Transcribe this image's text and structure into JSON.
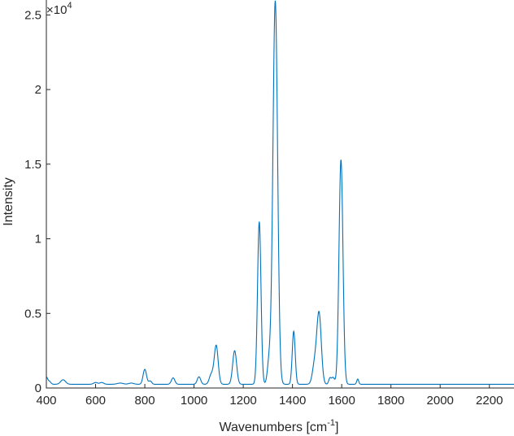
{
  "chart_data": {
    "type": "line",
    "title": "",
    "xlabel": "Wavenumbers [cm",
    "xlabel_sup": "-1",
    "xlabel_suffix": "]",
    "ylabel": "Intensity",
    "exponent_label": "×10",
    "exponent_power": "4",
    "xlim": [
      400,
      2300
    ],
    "ylim": [
      0,
      26000
    ],
    "xticks": [
      400,
      600,
      800,
      1000,
      1200,
      1400,
      1600,
      1800,
      2000,
      2200
    ],
    "xtick_labels": [
      "400",
      "600",
      "800",
      "1000",
      "1200",
      "1400",
      "1600",
      "1800",
      "2000",
      "2200"
    ],
    "yticks": [
      0,
      5000,
      10000,
      15000,
      20000,
      25000
    ],
    "ytick_labels": [
      "0",
      "0.5",
      "1",
      "1.5",
      "2",
      "2.5"
    ],
    "grid": false,
    "line_color": "#0072BD",
    "baseline": 250,
    "peaks": [
      {
        "x": 400,
        "height": 450,
        "width": 5
      },
      {
        "x": 412,
        "height": 200,
        "width": 6
      },
      {
        "x": 468,
        "height": 300,
        "width": 10
      },
      {
        "x": 600,
        "height": 120,
        "width": 8
      },
      {
        "x": 625,
        "height": 120,
        "width": 8
      },
      {
        "x": 700,
        "height": 80,
        "width": 12
      },
      {
        "x": 745,
        "height": 80,
        "width": 10
      },
      {
        "x": 800,
        "height": 1000,
        "width": 7
      },
      {
        "x": 822,
        "height": 220,
        "width": 6
      },
      {
        "x": 915,
        "height": 430,
        "width": 7
      },
      {
        "x": 1020,
        "height": 500,
        "width": 7
      },
      {
        "x": 1070,
        "height": 650,
        "width": 8
      },
      {
        "x": 1090,
        "height": 2600,
        "width": 8
      },
      {
        "x": 1165,
        "height": 2250,
        "width": 8
      },
      {
        "x": 1265,
        "height": 10900,
        "width": 7
      },
      {
        "x": 1305,
        "height": 1500,
        "width": 7
      },
      {
        "x": 1330,
        "height": 25700,
        "width": 9.5
      },
      {
        "x": 1405,
        "height": 3550,
        "width": 6
      },
      {
        "x": 1490,
        "height": 1300,
        "width": 9
      },
      {
        "x": 1508,
        "height": 4700,
        "width": 9
      },
      {
        "x": 1552,
        "height": 400,
        "width": 5
      },
      {
        "x": 1565,
        "height": 450,
        "width": 6
      },
      {
        "x": 1597,
        "height": 15050,
        "width": 8
      },
      {
        "x": 1665,
        "height": 350,
        "width": 4
      }
    ]
  }
}
